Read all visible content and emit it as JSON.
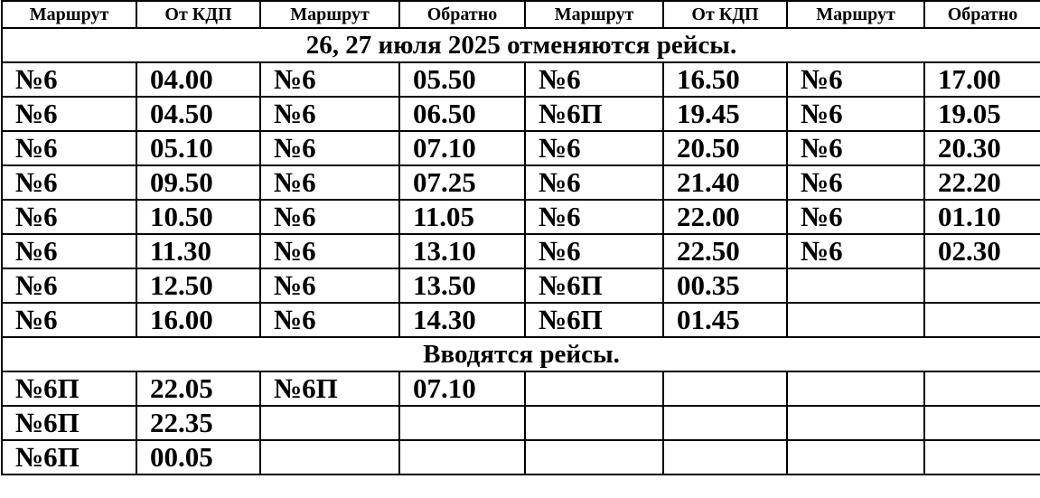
{
  "headers": [
    "Маршрут",
    "От КДП",
    "Маршрут",
    "Обратно",
    "Маршрут",
    "От КДП",
    "Маршрут",
    "Обратно"
  ],
  "cancel_title": "26, 27 июля 2025 отменяются рейсы.",
  "cancel_rows": [
    [
      "№6",
      "04.00",
      "№6",
      "05.50",
      "№6",
      "16.50",
      "№6",
      "17.00"
    ],
    [
      "№6",
      "04.50",
      "№6",
      "06.50",
      "№6П",
      "19.45",
      "№6",
      "19.05"
    ],
    [
      "№6",
      "05.10",
      "№6",
      "07.10",
      "№6",
      "20.50",
      "№6",
      "20.30"
    ],
    [
      "№6",
      "09.50",
      "№6",
      "07.25",
      "№6",
      "21.40",
      "№6",
      "22.20"
    ],
    [
      "№6",
      "10.50",
      "№6",
      "11.05",
      "№6",
      "22.00",
      "№6",
      "01.10"
    ],
    [
      "№6",
      "11.30",
      "№6",
      "13.10",
      "№6",
      "22.50",
      "№6",
      "02.30"
    ],
    [
      "№6",
      "12.50",
      "№6",
      "13.50",
      "№6П",
      "00.35",
      "",
      ""
    ],
    [
      "№6",
      "16.00",
      "№6",
      "14.30",
      "№6П",
      "01.45",
      "",
      ""
    ]
  ],
  "added_title": "Вводятся рейсы.",
  "added_rows": [
    [
      "№6П",
      "22.05",
      "№6П",
      "07.10",
      "",
      "",
      "",
      ""
    ],
    [
      "№6П",
      "22.35",
      "",
      "",
      "",
      "",
      "",
      ""
    ],
    [
      "№6П",
      "00.05",
      "",
      "",
      "",
      "",
      "",
      ""
    ]
  ]
}
